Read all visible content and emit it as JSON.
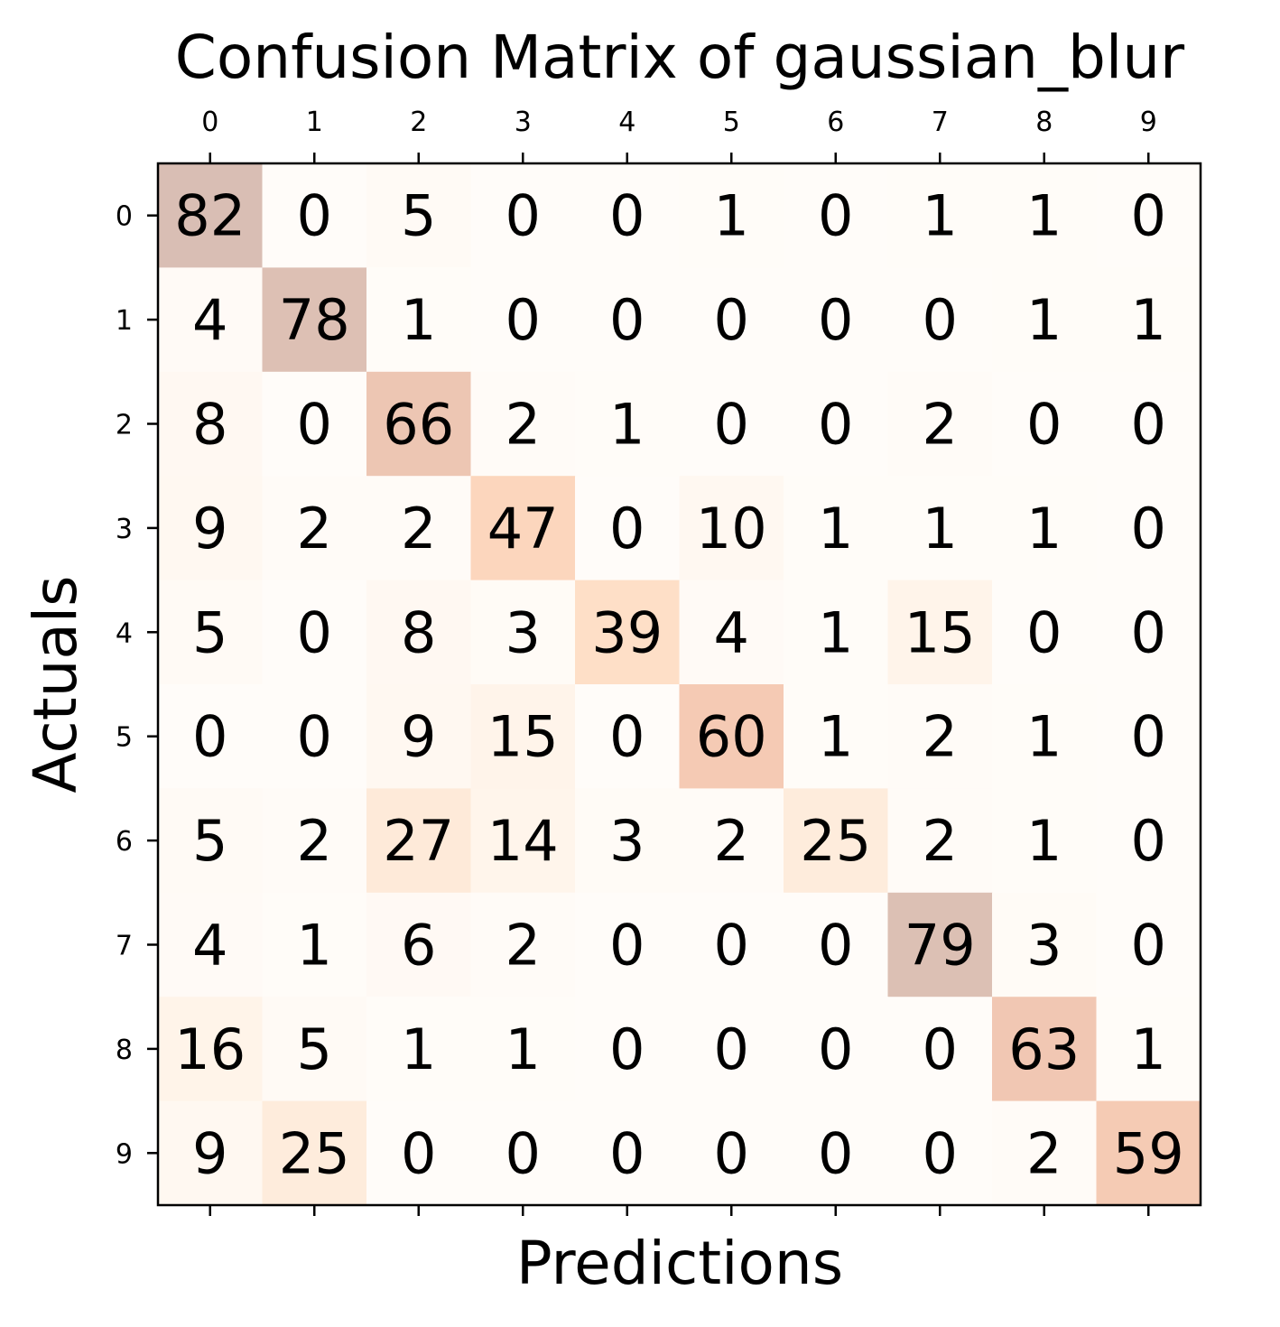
{
  "chart_data": {
    "type": "heatmap",
    "title": "Confusion Matrix of gaussian_blur",
    "xlabel": "Predictions",
    "ylabel": "Actuals",
    "x_categories": [
      "0",
      "1",
      "2",
      "3",
      "4",
      "5",
      "6",
      "7",
      "8",
      "9"
    ],
    "y_categories": [
      "0",
      "1",
      "2",
      "3",
      "4",
      "5",
      "6",
      "7",
      "8",
      "9"
    ],
    "colormap": "Oranges",
    "cell_alpha": 0.3,
    "values": [
      [
        82,
        0,
        5,
        0,
        0,
        1,
        0,
        1,
        1,
        0
      ],
      [
        4,
        78,
        1,
        0,
        0,
        0,
        0,
        0,
        1,
        1
      ],
      [
        8,
        0,
        66,
        2,
        1,
        0,
        0,
        2,
        0,
        0
      ],
      [
        9,
        2,
        2,
        47,
        0,
        10,
        1,
        1,
        1,
        0
      ],
      [
        5,
        0,
        8,
        3,
        39,
        4,
        1,
        15,
        0,
        0
      ],
      [
        0,
        0,
        9,
        15,
        0,
        60,
        1,
        2,
        1,
        0
      ],
      [
        5,
        2,
        27,
        14,
        3,
        2,
        25,
        2,
        1,
        0
      ],
      [
        4,
        1,
        6,
        2,
        0,
        0,
        0,
        79,
        3,
        0
      ],
      [
        16,
        5,
        1,
        1,
        0,
        0,
        0,
        0,
        63,
        1
      ],
      [
        9,
        25,
        0,
        0,
        0,
        0,
        0,
        0,
        2,
        59
      ]
    ]
  }
}
